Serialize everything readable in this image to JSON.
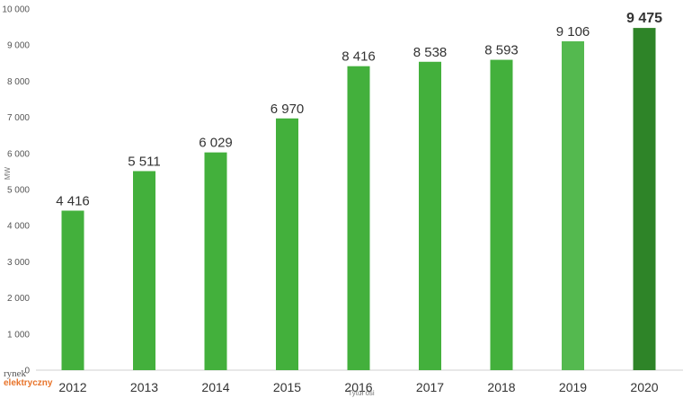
{
  "chart_data": {
    "type": "bar",
    "categories": [
      "2012",
      "2013",
      "2014",
      "2015",
      "2016",
      "2017",
      "2018",
      "2019",
      "2020"
    ],
    "values": [
      4416,
      5511,
      6029,
      6970,
      8416,
      8538,
      8593,
      9106,
      9475
    ],
    "labels": [
      "4 416",
      "5 511",
      "6 029",
      "6 970",
      "8 416",
      "8 538",
      "8 593",
      "9 106",
      "9 475"
    ],
    "highlight_last": true,
    "ylabel": "MW",
    "xlabel": "Tytuł osi",
    "ylim": [
      0,
      10000
    ],
    "yticks": [
      0,
      1000,
      2000,
      3000,
      4000,
      5000,
      6000,
      7000,
      8000,
      9000,
      10000
    ],
    "ytick_labels": [
      "0",
      "1 000",
      "2 000",
      "3 000",
      "4 000",
      "5 000",
      "6 000",
      "7 000",
      "8 000",
      "9 000",
      "10 000"
    ],
    "grid": false,
    "colors": {
      "default": "#43b03c",
      "2019": "#54b94f",
      "2020": "#2e8428"
    }
  },
  "logo": {
    "line1": "rynek",
    "line2": "elektryczny"
  }
}
